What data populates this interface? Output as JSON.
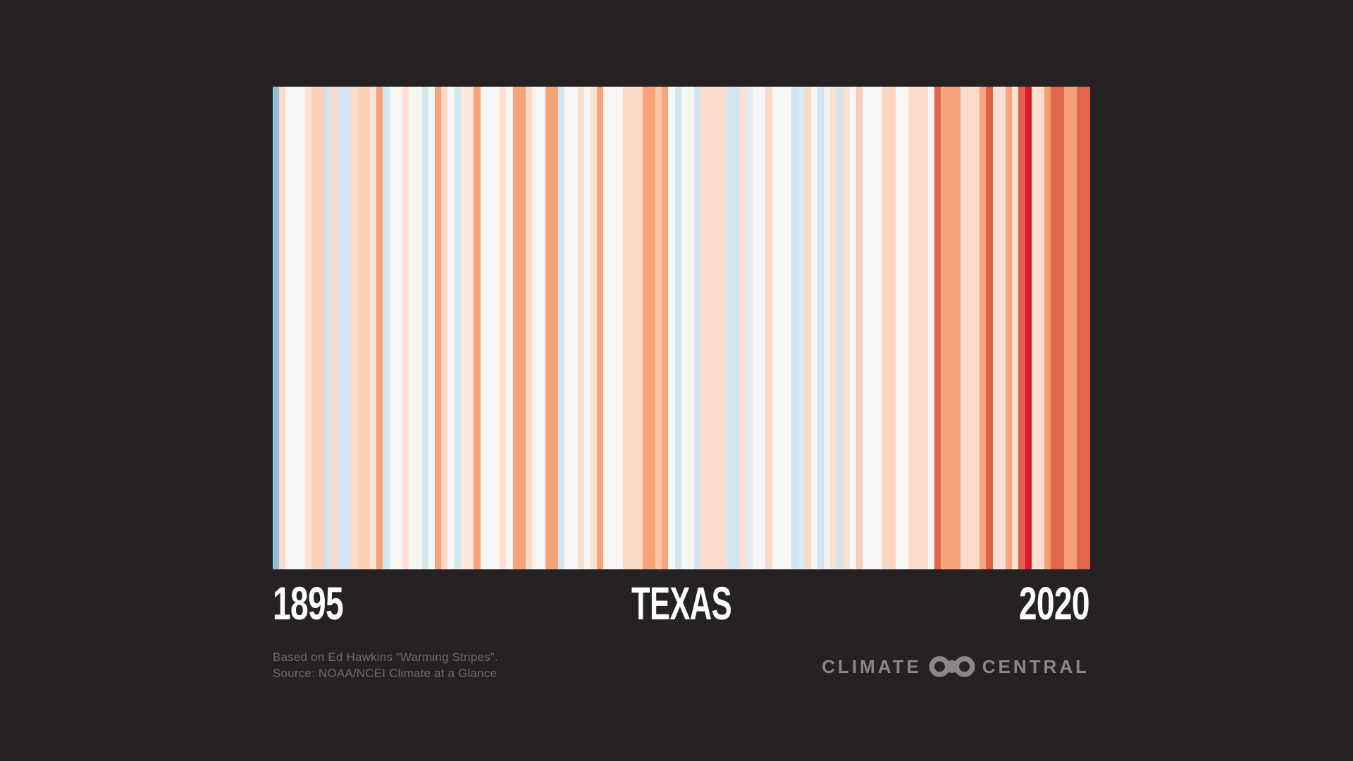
{
  "background_color": "#262223",
  "chart_data": {
    "type": "heatmap",
    "subtype": "warming-stripes",
    "title": "TEXAS",
    "orientation": "vertical-stripes",
    "legend": "off",
    "year_start": 1895,
    "year_end": 2020,
    "x_start_label": "1895",
    "x_end_label": "2020",
    "palette_note": {
      "cool": "#d3e5f0",
      "coolest_shown": "#8fc0da",
      "neutral": "#f6f6f5",
      "warm": "#f7a47c",
      "hot": "#e2654d",
      "hottest_shown": "#da1b32"
    },
    "stripe_colors": [
      "#8fc0da",
      "#fbd9c5",
      "#f6f6f5",
      "#f6f6f5",
      "#f6f6f5",
      "#fce1d0",
      "#fad3ba",
      "#fad3ba",
      "#d3e5f0",
      "#fbd9c5",
      "#d3e5f0",
      "#d3e5f0",
      "#fbdcc8",
      "#fad3ba",
      "#fad3ba",
      "#fce3d3",
      "#f7a47c",
      "#d3e5f0",
      "#f6f6f5",
      "#f6f6f5",
      "#fce1d0",
      "#f6f6f5",
      "#f6f6f5",
      "#d3e5f0",
      "#f6f6f5",
      "#f7a47c",
      "#fbd9c5",
      "#f6f6f5",
      "#d3e5f0",
      "#fbe7db",
      "#fbe7db",
      "#f7a47c",
      "#f6f6f5",
      "#f6f6f5",
      "#f6f6f5",
      "#fce1d0",
      "#f6f6f5",
      "#f7a47c",
      "#f7a47c",
      "#fbd9c5",
      "#f6f6f5",
      "#f6f6f5",
      "#f7a47c",
      "#f7a47c",
      "#d3e5f0",
      "#f6f6f5",
      "#f6f6f5",
      "#fce1d0",
      "#f6f6f5",
      "#fce1d0",
      "#f7a47c",
      "#f6f6f5",
      "#f6f6f5",
      "#f6f6f5",
      "#fbd9c5",
      "#fbd9c5",
      "#fbd9c5",
      "#f7a47c",
      "#f7a47c",
      "#fbc4a4",
      "#f7a47c",
      "#f6f6f5",
      "#d3e5f0",
      "#f6f6f5",
      "#f6f6f5",
      "#d3e5f0",
      "#fbdccb",
      "#fbdccb",
      "#fbdccb",
      "#fbdccb",
      "#d3e5f0",
      "#d3e5f0",
      "#fce1d0",
      "#e3ecf4",
      "#f6f6f5",
      "#f6f6f5",
      "#fbd9c5",
      "#f6f6f5",
      "#f6f6f5",
      "#f6f6f5",
      "#d3e5f0",
      "#dce9f2",
      "#fbd9c5",
      "#f6f6f5",
      "#d3e5f0",
      "#eff1f2",
      "#fce1d0",
      "#d3e5f0",
      "#fce1d0",
      "#f6f6f5",
      "#fbcdb4",
      "#f6f6f5",
      "#f6f6f5",
      "#f6f6f5",
      "#fbd5c0",
      "#fbd5c0",
      "#f6f6f5",
      "#f6f6f5",
      "#fbdccb",
      "#fbdccb",
      "#fbdccb",
      "#f6f6f5",
      "#e2654d",
      "#f7a47c",
      "#f7a47c",
      "#f7a47c",
      "#fbdccb",
      "#fbdccb",
      "#fbdccb",
      "#f8a67e",
      "#e0604a",
      "#fcded0",
      "#fcded0",
      "#f8a87f",
      "#fde2d4",
      "#e3614b",
      "#da1b32",
      "#fcdfd1",
      "#fcdfd1",
      "#f59c73",
      "#e2654d",
      "#e2654d",
      "#f6a07a",
      "#f6a07a",
      "#e4654e",
      "#e4654e"
    ]
  },
  "labels": {
    "start_year": "1895",
    "region": "TEXAS",
    "end_year": "2020"
  },
  "footer": {
    "attribution_line1": "Based on Ed Hawkins “Warming Stripes”.",
    "attribution_line2": "Source: NOAA/NCEI Climate at a Glance",
    "text_color": "#6f6b6c",
    "logo": {
      "left_text": "CLIMATE",
      "right_text": "CENTRAL",
      "symbol": "infinity-rings-icon",
      "color": "#8b8788"
    }
  }
}
